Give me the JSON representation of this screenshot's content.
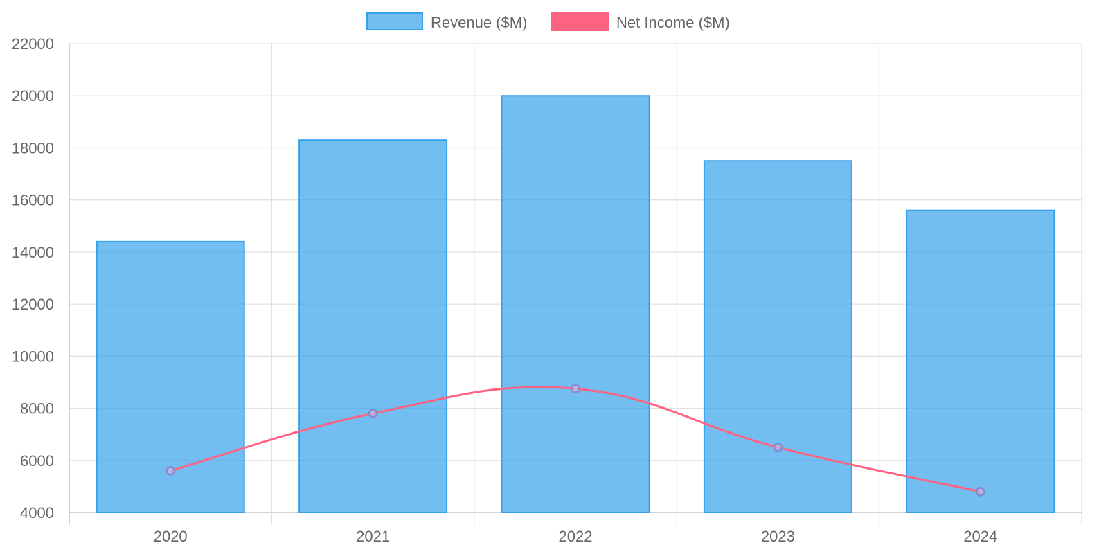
{
  "chart_data": {
    "type": "bar",
    "categories": [
      "2020",
      "2021",
      "2022",
      "2023",
      "2024"
    ],
    "series": [
      {
        "name": "Revenue ($M)",
        "type": "bar",
        "values": [
          14400,
          18300,
          20000,
          17500,
          15600
        ],
        "fill_color": "#36a2eb",
        "border_color": "#36a2eb"
      },
      {
        "name": "Net Income ($M)",
        "type": "line",
        "values": [
          5600,
          7800,
          8750,
          6500,
          4800
        ],
        "line_color": "#ff6384",
        "point_color": "#8a8ccf"
      }
    ],
    "y_ticks": [
      "4000",
      "6000",
      "8000",
      "10000",
      "12000",
      "14000",
      "16000",
      "18000",
      "20000",
      "22000"
    ],
    "ylim": [
      4000,
      22000
    ],
    "grid": true,
    "legend_position": "top-center"
  }
}
